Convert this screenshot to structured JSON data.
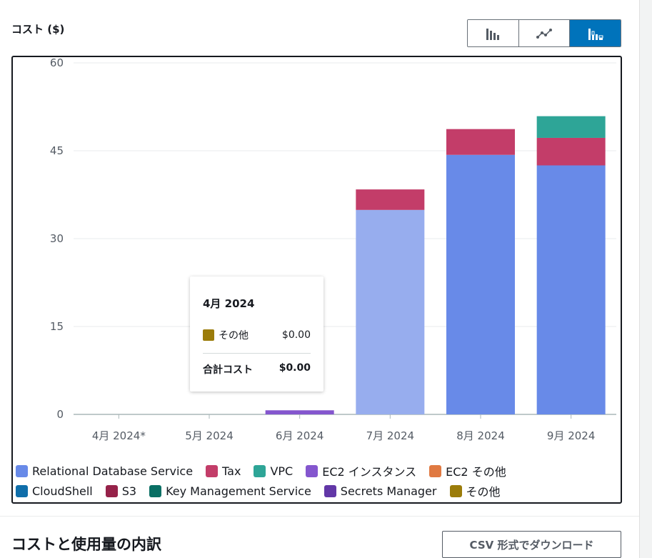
{
  "header": {
    "title": "コスト ($)"
  },
  "view_toggle": [
    {
      "name": "bar-chart-icon",
      "active": false
    },
    {
      "name": "line-chart-icon",
      "active": false
    },
    {
      "name": "stacked-bar-chart-icon",
      "active": true
    }
  ],
  "tooltip": {
    "title": "4月 2024",
    "row_label": "その他",
    "row_value": "$0.00",
    "row_color": "#9b7c0a",
    "total_label": "合計コスト",
    "total_value": "$0.00"
  },
  "chart_data": {
    "type": "bar",
    "stacked": true,
    "categories": [
      "4月 2024*",
      "5月 2024",
      "6月 2024",
      "7月 2024",
      "8月 2024",
      "9月 2024"
    ],
    "ylim": [
      0,
      60
    ],
    "yticks": [
      0,
      15,
      30,
      45,
      60
    ],
    "grid": true,
    "legend_placement": "bottom",
    "series": [
      {
        "name": "Relational Database Service",
        "color": "#688ae8",
        "values": [
          0,
          0,
          0,
          34.9,
          44.3,
          42.5
        ]
      },
      {
        "name": "Tax",
        "color": "#c33d69",
        "values": [
          0,
          0,
          0,
          3.5,
          4.4,
          4.7
        ]
      },
      {
        "name": "VPC",
        "color": "#2ea597",
        "values": [
          0,
          0,
          0,
          0,
          0,
          3.7
        ]
      },
      {
        "name": "EC2 インスタンス",
        "color": "#8456ce",
        "values": [
          0,
          0,
          0.7,
          0,
          0,
          0
        ]
      },
      {
        "name": "EC2 その他",
        "color": "#e07941",
        "values": [
          0,
          0,
          0,
          0,
          0,
          0
        ]
      },
      {
        "name": "CloudShell",
        "color": "#0f6eaa",
        "values": [
          0,
          0,
          0,
          0,
          0,
          0
        ]
      },
      {
        "name": "S3",
        "color": "#962249",
        "values": [
          0,
          0,
          0,
          0,
          0,
          0
        ]
      },
      {
        "name": "Key Management Service",
        "color": "#096f64",
        "values": [
          0,
          0,
          0,
          0,
          0,
          0
        ]
      },
      {
        "name": "Secrets Manager",
        "color": "#6237a7",
        "values": [
          0,
          0,
          0,
          0,
          0,
          0
        ]
      },
      {
        "name": "その他",
        "color": "#9b7c0a",
        "values": [
          0,
          0,
          0,
          0,
          0,
          0
        ]
      }
    ]
  },
  "breakdown": {
    "title": "コストと使用量の内訳",
    "csv_button": "CSV 形式でダウンロード"
  }
}
